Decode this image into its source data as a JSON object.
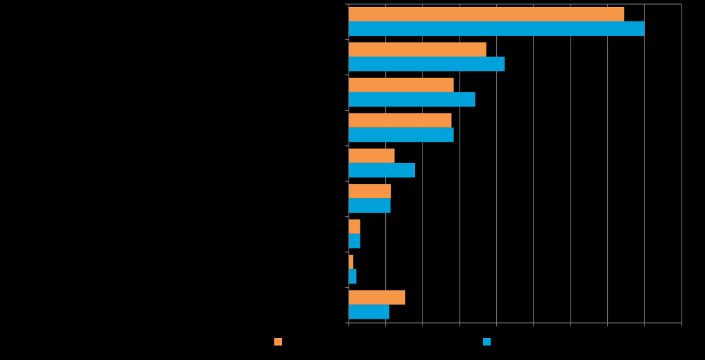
{
  "chart_data": {
    "type": "bar",
    "orientation": "horizontal",
    "title": "",
    "xlabel": "",
    "ylabel": "",
    "xlim": [
      0,
      90
    ],
    "categories": [
      "",
      "",
      "",
      "",
      "",
      "",
      "",
      "",
      ""
    ],
    "series": [
      {
        "name": "",
        "color": "#F79646",
        "values": [
          74.5,
          37.2,
          28.4,
          27.8,
          12.4,
          11.4,
          3.1,
          1.2,
          15.3
        ]
      },
      {
        "name": "",
        "color": "#00A2DB",
        "values": [
          80.0,
          42.2,
          34.2,
          28.4,
          17.9,
          11.3,
          3.1,
          2.1,
          11.0
        ]
      }
    ],
    "grid": true,
    "legend_position": "bottom",
    "colors": {
      "background": "#000000",
      "gridline": "#808080",
      "axis": "#808080"
    }
  }
}
